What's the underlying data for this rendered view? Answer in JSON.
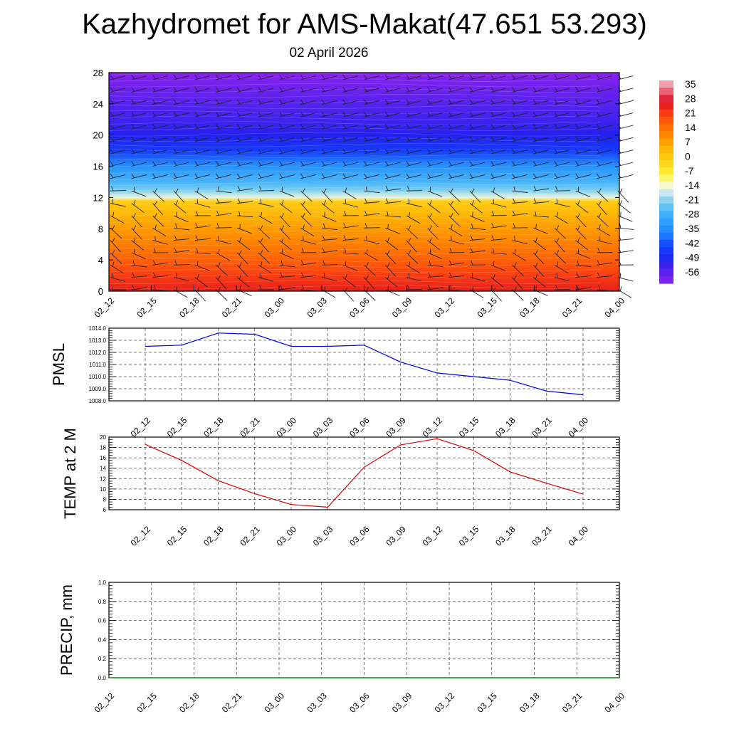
{
  "title": "Kazhydromet for AMS-Makat(47.651 53.293)",
  "subtitle": "02 April 2026",
  "time_labels": [
    "02_12",
    "02_15",
    "02_18",
    "02_21",
    "03_00",
    "03_03",
    "03_06",
    "03_09",
    "03_12",
    "03_15",
    "03_18",
    "03_21",
    "04_00"
  ],
  "chart_data": [
    {
      "type": "heatmap",
      "name": "vertical-temperature-wind-section",
      "x": [
        "02_12",
        "02_15",
        "02_18",
        "02_21",
        "03_00",
        "03_03",
        "03_06",
        "03_09",
        "03_12",
        "03_15",
        "03_18",
        "03_21",
        "04_00"
      ],
      "y_ticks": [
        0,
        4,
        8,
        12,
        16,
        20,
        24,
        28
      ],
      "ylim": [
        0,
        28
      ],
      "colorbar": {
        "labels": [
          35,
          28,
          21,
          14,
          7,
          0,
          -7,
          -14,
          -21,
          -28,
          -35,
          -42,
          -49,
          -56
        ],
        "range": [
          -60,
          38
        ]
      },
      "temperature_profile": [
        {
          "level": 0,
          "value": 26
        },
        {
          "level": 2,
          "value": 22
        },
        {
          "level": 4,
          "value": 17
        },
        {
          "level": 6,
          "value": 13
        },
        {
          "level": 8,
          "value": 9
        },
        {
          "level": 10,
          "value": 4
        },
        {
          "level": 11.5,
          "value": 0
        },
        {
          "level": 12,
          "value": -14
        },
        {
          "level": 13,
          "value": -21
        },
        {
          "level": 14,
          "value": -26
        },
        {
          "level": 16,
          "value": -33
        },
        {
          "level": 18,
          "value": -44
        },
        {
          "level": 20,
          "value": -49
        },
        {
          "level": 22,
          "value": -52
        },
        {
          "level": 24,
          "value": -54
        },
        {
          "level": 26,
          "value": -57
        },
        {
          "level": 28,
          "value": -60
        }
      ],
      "wind_barbs": "present at each time and level"
    },
    {
      "type": "line",
      "name": "pmsl",
      "ylabel": "PMSL",
      "categories": [
        "02_12",
        "02_15",
        "02_18",
        "02_21",
        "03_00",
        "03_03",
        "03_06",
        "03_09",
        "03_12",
        "03_15",
        "03_18",
        "03_21",
        "04_00"
      ],
      "values": [
        1012.5,
        1012.6,
        1013.6,
        1013.5,
        1012.5,
        1012.5,
        1012.6,
        1011.2,
        1010.3,
        1010.0,
        1009.7,
        1008.8,
        1008.5
      ],
      "ylim": [
        1008.0,
        1014.0
      ],
      "yticks": [
        "1008.0",
        "1009.0",
        "1010.0",
        "1011.0",
        "1012.0",
        "1013.0",
        "1014.0"
      ],
      "color": "#0000dd"
    },
    {
      "type": "line",
      "name": "temp-2m",
      "ylabel": "TEMP at 2 M",
      "categories": [
        "02_12",
        "02_15",
        "02_18",
        "02_21",
        "03_00",
        "03_03",
        "03_06",
        "03_09",
        "03_12",
        "03_15",
        "03_18",
        "03_21",
        "04_00"
      ],
      "values": [
        18.6,
        15.5,
        11.6,
        9.1,
        7.0,
        6.5,
        14.2,
        18.5,
        19.7,
        17.4,
        13.3,
        11.1,
        9.0
      ],
      "ylim": [
        6,
        20
      ],
      "yticks": [
        "6",
        "8",
        "10",
        "12",
        "14",
        "16",
        "18",
        "20"
      ],
      "color": "#dd0000"
    },
    {
      "type": "line",
      "name": "precip",
      "ylabel": "PRECIP, mm",
      "categories": [
        "02_12",
        "02_15",
        "02_18",
        "02_21",
        "03_00",
        "03_03",
        "03_06",
        "03_09",
        "03_12",
        "03_15",
        "03_18",
        "03_21",
        "04_00"
      ],
      "values": [
        0,
        0,
        0,
        0,
        0,
        0,
        0,
        0,
        0,
        0,
        0,
        0,
        0
      ],
      "ylim": [
        0,
        1
      ],
      "yticks": [
        "0.0",
        "0.2",
        "0.4",
        "0.6",
        "0.8",
        "1.0"
      ],
      "color": "#008800"
    }
  ]
}
